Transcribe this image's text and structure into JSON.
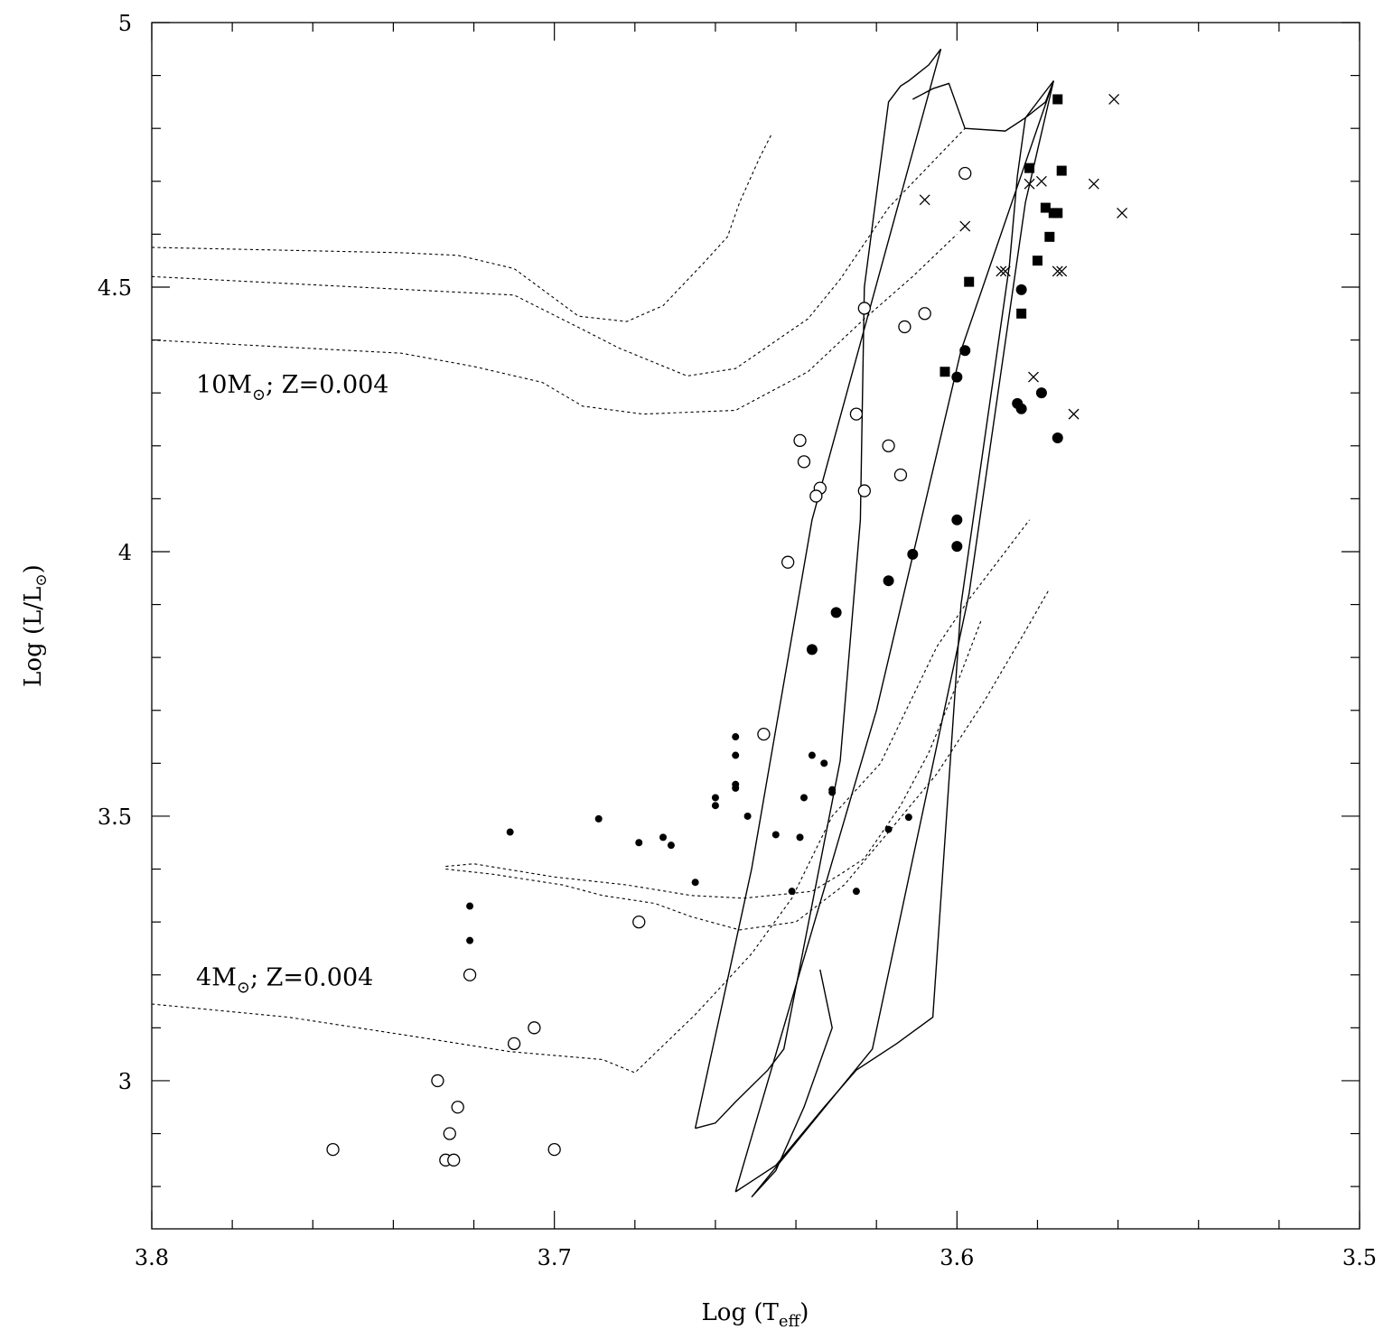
{
  "chart_data": {
    "type": "scatter",
    "title": "",
    "xlabel": "Log (T",
    "xlabel_sub": "eff",
    "xlabel_close": ")",
    "ylabel": "Log (L/L",
    "ylabel_sun": "⊙",
    "ylabel_close": ")",
    "xlim": [
      3.8,
      3.5
    ],
    "ylim": [
      2.72,
      5.0
    ],
    "x_ticks": [
      3.8,
      3.7,
      3.6,
      3.5
    ],
    "x_tick_labels": [
      "3.8",
      "3.7",
      "3.6",
      "3.5"
    ],
    "y_ticks": [
      3.0,
      3.5,
      4.0,
      4.5,
      5.0
    ],
    "y_tick_labels": [
      "3",
      "3.5",
      "4",
      "4.5",
      "5"
    ],
    "x_minor_step": 0.02,
    "y_minor_step": 0.1,
    "annotations": [
      {
        "id": "ann-10m",
        "prefix": "10M",
        "sun": "⊙",
        "suffix": "; Z=0.004",
        "x": 3.789,
        "y": 4.3
      },
      {
        "id": "ann-4m",
        "prefix": "4M",
        "sun": "⊙",
        "suffix": "; Z=0.004",
        "x": 3.789,
        "y": 3.18
      }
    ],
    "series": [
      {
        "name": "open-circles",
        "marker": "open-circle",
        "points": [
          [
            3.598,
            4.715
          ],
          [
            3.623,
            4.46
          ],
          [
            3.608,
            4.45
          ],
          [
            3.613,
            4.425
          ],
          [
            3.625,
            4.26
          ],
          [
            3.639,
            4.21
          ],
          [
            3.638,
            4.17
          ],
          [
            3.617,
            4.2
          ],
          [
            3.614,
            4.145
          ],
          [
            3.623,
            4.115
          ],
          [
            3.634,
            4.12
          ],
          [
            3.635,
            4.105
          ],
          [
            3.642,
            3.98
          ],
          [
            3.648,
            3.655
          ],
          [
            3.679,
            3.3
          ],
          [
            3.721,
            3.2
          ],
          [
            3.705,
            3.1
          ],
          [
            3.71,
            3.07
          ],
          [
            3.729,
            3.0
          ],
          [
            3.724,
            2.95
          ],
          [
            3.726,
            2.9
          ],
          [
            3.727,
            2.85
          ],
          [
            3.725,
            2.85
          ],
          [
            3.7,
            2.87
          ],
          [
            3.755,
            2.87
          ]
        ]
      },
      {
        "name": "large-filled-circles",
        "marker": "filled-circle-large",
        "points": [
          [
            3.584,
            4.495
          ],
          [
            3.598,
            4.38
          ],
          [
            3.6,
            4.33
          ],
          [
            3.585,
            4.28
          ],
          [
            3.584,
            4.27
          ],
          [
            3.579,
            4.3
          ],
          [
            3.575,
            4.215
          ],
          [
            3.6,
            4.06
          ],
          [
            3.6,
            4.01
          ],
          [
            3.611,
            3.995
          ],
          [
            3.617,
            3.945
          ],
          [
            3.63,
            3.885
          ],
          [
            3.636,
            3.815
          ]
        ]
      },
      {
        "name": "small-filled-circles",
        "marker": "filled-circle-small",
        "points": [
          [
            3.655,
            3.65
          ],
          [
            3.655,
            3.615
          ],
          [
            3.655,
            3.56
          ],
          [
            3.655,
            3.553
          ],
          [
            3.66,
            3.535
          ],
          [
            3.66,
            3.52
          ],
          [
            3.652,
            3.5
          ],
          [
            3.665,
            3.375
          ],
          [
            3.671,
            3.445
          ],
          [
            3.673,
            3.46
          ],
          [
            3.679,
            3.45
          ],
          [
            3.689,
            3.495
          ],
          [
            3.711,
            3.47
          ],
          [
            3.721,
            3.33
          ],
          [
            3.721,
            3.265
          ],
          [
            3.636,
            3.615
          ],
          [
            3.633,
            3.6
          ],
          [
            3.631,
            3.55
          ],
          [
            3.631,
            3.545
          ],
          [
            3.638,
            3.535
          ],
          [
            3.639,
            3.46
          ],
          [
            3.645,
            3.465
          ],
          [
            3.617,
            3.475
          ],
          [
            3.612,
            3.498
          ],
          [
            3.625,
            3.358
          ],
          [
            3.641,
            3.358
          ]
        ]
      },
      {
        "name": "filled-squares",
        "marker": "filled-square",
        "points": [
          [
            3.575,
            4.855
          ],
          [
            3.582,
            4.725
          ],
          [
            3.574,
            4.72
          ],
          [
            3.578,
            4.65
          ],
          [
            3.576,
            4.64
          ],
          [
            3.575,
            4.64
          ],
          [
            3.577,
            4.595
          ],
          [
            3.58,
            4.55
          ],
          [
            3.597,
            4.51
          ],
          [
            3.584,
            4.45
          ],
          [
            3.603,
            4.34
          ]
        ]
      },
      {
        "name": "crosses",
        "marker": "cross",
        "points": [
          [
            3.561,
            4.855
          ],
          [
            3.582,
            4.695
          ],
          [
            3.579,
            4.7
          ],
          [
            3.566,
            4.695
          ],
          [
            3.559,
            4.64
          ],
          [
            3.608,
            4.665
          ],
          [
            3.598,
            4.615
          ],
          [
            3.589,
            4.53
          ],
          [
            3.588,
            4.53
          ],
          [
            3.575,
            4.53
          ],
          [
            3.574,
            4.53
          ],
          [
            3.581,
            4.33
          ],
          [
            3.571,
            4.26
          ]
        ]
      }
    ],
    "tracks_solid": [
      {
        "name": "track-a",
        "points": [
          [
            3.665,
            2.91
          ],
          [
            3.66,
            2.92
          ],
          [
            3.655,
            2.96
          ],
          [
            3.647,
            3.02
          ],
          [
            3.643,
            3.06
          ],
          [
            3.629,
            3.605
          ],
          [
            3.624,
            4.06
          ],
          [
            3.623,
            4.5
          ],
          [
            3.617,
            4.85
          ],
          [
            3.614,
            4.88
          ],
          [
            3.612,
            4.89
          ],
          [
            3.607,
            4.92
          ],
          [
            3.604,
            4.95
          ],
          [
            3.636,
            4.06
          ],
          [
            3.651,
            3.4
          ],
          [
            3.665,
            2.91
          ]
        ]
      },
      {
        "name": "track-b",
        "points": [
          [
            3.655,
            2.79
          ],
          [
            3.651,
            2.81
          ],
          [
            3.645,
            2.84
          ],
          [
            3.633,
            2.95
          ],
          [
            3.625,
            3.02
          ],
          [
            3.615,
            3.07
          ],
          [
            3.606,
            3.12
          ],
          [
            3.599,
            3.9
          ],
          [
            3.587,
            4.54
          ],
          [
            3.585,
            4.71
          ],
          [
            3.583,
            4.82
          ],
          [
            3.578,
            4.85
          ],
          [
            3.576,
            4.89
          ],
          [
            3.599,
            4.38
          ],
          [
            3.62,
            3.7
          ],
          [
            3.655,
            2.79
          ]
        ]
      },
      {
        "name": "track-c",
        "points": [
          [
            3.611,
            4.855
          ],
          [
            3.606,
            4.875
          ],
          [
            3.602,
            4.885
          ],
          [
            3.598,
            4.8
          ],
          [
            3.588,
            4.795
          ],
          [
            3.583,
            4.82
          ],
          [
            3.576,
            4.89
          ],
          [
            3.583,
            4.66
          ],
          [
            3.597,
            3.92
          ],
          [
            3.621,
            3.06
          ],
          [
            3.651,
            2.78
          ],
          [
            3.645,
            2.83
          ],
          [
            3.638,
            2.95
          ],
          [
            3.631,
            3.1
          ],
          [
            3.634,
            3.21
          ]
        ]
      }
    ],
    "models_dotted": [
      {
        "name": "model-10m-a",
        "points": [
          [
            3.8,
            4.575
          ],
          [
            3.738,
            4.565
          ],
          [
            3.724,
            4.56
          ],
          [
            3.721,
            4.555
          ],
          [
            3.71,
            4.535
          ],
          [
            3.694,
            4.445
          ],
          [
            3.682,
            4.435
          ],
          [
            3.673,
            4.465
          ],
          [
            3.663,
            4.545
          ],
          [
            3.657,
            4.595
          ],
          [
            3.654,
            4.66
          ],
          [
            3.649,
            4.745
          ],
          [
            3.646,
            4.79
          ]
        ]
      },
      {
        "name": "model-10m-b",
        "points": [
          [
            3.8,
            4.52
          ],
          [
            3.71,
            4.485
          ],
          [
            3.693,
            4.42
          ],
          [
            3.684,
            4.385
          ],
          [
            3.667,
            4.332
          ],
          [
            3.655,
            4.346
          ],
          [
            3.637,
            4.44
          ],
          [
            3.629,
            4.515
          ],
          [
            3.617,
            4.65
          ],
          [
            3.598,
            4.8
          ]
        ]
      },
      {
        "name": "model-10m-c",
        "points": [
          [
            3.8,
            4.4
          ],
          [
            3.738,
            4.375
          ],
          [
            3.72,
            4.35
          ],
          [
            3.703,
            4.32
          ],
          [
            3.693,
            4.275
          ],
          [
            3.678,
            4.26
          ],
          [
            3.655,
            4.267
          ],
          [
            3.637,
            4.34
          ],
          [
            3.623,
            4.44
          ],
          [
            3.611,
            4.52
          ],
          [
            3.6,
            4.6
          ]
        ]
      },
      {
        "name": "model-4m-a",
        "points": [
          [
            3.727,
            3.405
          ],
          [
            3.72,
            3.41
          ],
          [
            3.7,
            3.385
          ],
          [
            3.682,
            3.37
          ],
          [
            3.666,
            3.35
          ],
          [
            3.653,
            3.345
          ],
          [
            3.636,
            3.358
          ],
          [
            3.629,
            3.39
          ],
          [
            3.623,
            3.42
          ],
          [
            3.614,
            3.52
          ],
          [
            3.607,
            3.62
          ],
          [
            3.6,
            3.75
          ],
          [
            3.594,
            3.87
          ]
        ]
      },
      {
        "name": "model-4m-b",
        "points": [
          [
            3.727,
            3.4
          ],
          [
            3.715,
            3.39
          ],
          [
            3.698,
            3.37
          ],
          [
            3.688,
            3.35
          ],
          [
            3.675,
            3.335
          ],
          [
            3.666,
            3.31
          ],
          [
            3.654,
            3.285
          ],
          [
            3.64,
            3.3
          ],
          [
            3.628,
            3.37
          ],
          [
            3.617,
            3.47
          ],
          [
            3.605,
            3.58
          ],
          [
            3.593,
            3.72
          ],
          [
            3.583,
            3.85
          ],
          [
            3.577,
            3.93
          ]
        ]
      },
      {
        "name": "model-4m-c",
        "points": [
          [
            3.8,
            3.145
          ],
          [
            3.766,
            3.12
          ],
          [
            3.736,
            3.085
          ],
          [
            3.711,
            3.055
          ],
          [
            3.688,
            3.04
          ],
          [
            3.68,
            3.015
          ],
          [
            3.665,
            3.125
          ],
          [
            3.651,
            3.24
          ],
          [
            3.641,
            3.345
          ],
          [
            3.631,
            3.5
          ],
          [
            3.619,
            3.6
          ],
          [
            3.605,
            3.82
          ],
          [
            3.597,
            3.91
          ],
          [
            3.589,
            3.99
          ],
          [
            3.582,
            4.06
          ]
        ]
      }
    ]
  }
}
